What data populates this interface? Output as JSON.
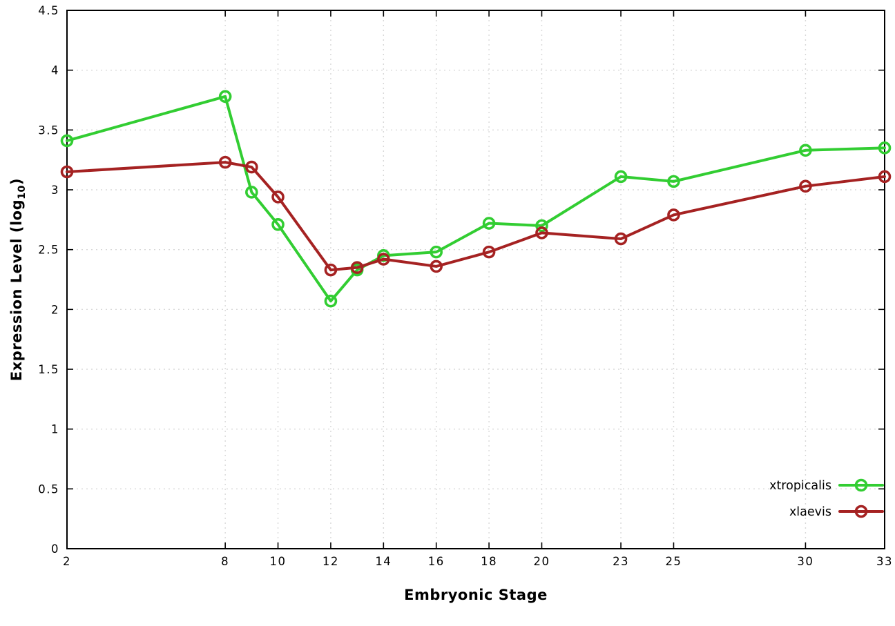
{
  "chart_data": {
    "type": "line",
    "title": "",
    "xlabel": "Embryonic Stage",
    "ylabel": "Expression Level (log10)",
    "ylabel_parts": {
      "pre": "Expression Level (log",
      "sub": "10",
      "post": ")"
    },
    "xlim": [
      2,
      33
    ],
    "ylim": [
      0,
      4.5
    ],
    "x_ticks": [
      2,
      8,
      10,
      12,
      14,
      16,
      18,
      20,
      23,
      25,
      30,
      33
    ],
    "y_ticks": [
      0,
      0.5,
      1,
      1.5,
      2,
      2.5,
      3,
      3.5,
      4,
      4.5
    ],
    "grid": true,
    "legend_position": "bottom-right",
    "x": [
      2,
      8,
      9,
      10,
      12,
      13,
      14,
      16,
      18,
      20,
      23,
      25,
      30,
      33
    ],
    "series": [
      {
        "name": "xtropicalis",
        "color": "#32cd32",
        "marker": "open-circle",
        "values": [
          3.41,
          3.78,
          2.98,
          2.71,
          2.07,
          2.33,
          2.45,
          2.48,
          2.72,
          2.7,
          3.11,
          3.07,
          3.33,
          3.35
        ]
      },
      {
        "name": "xlaevis",
        "color": "#a52222",
        "marker": "open-circle",
        "values": [
          3.15,
          3.23,
          3.19,
          2.94,
          2.33,
          2.35,
          2.42,
          2.36,
          2.48,
          2.64,
          2.59,
          2.79,
          3.03,
          3.11
        ]
      }
    ],
    "colors": {
      "background": "#ffffff",
      "axis": "#000000",
      "grid": "#d8d8d8",
      "tick_label": "#000000"
    }
  }
}
